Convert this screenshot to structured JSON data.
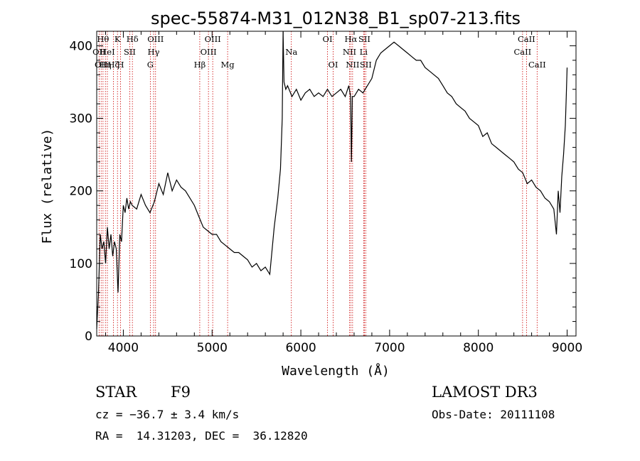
{
  "chart_data": {
    "type": "line",
    "title": "spec-55874-M31_012N38_B1_sp07-213.fits",
    "xlabel": "Wavelength (Å)",
    "ylabel": "Flux (relative)",
    "xlim": [
      3700,
      9100
    ],
    "ylim": [
      0,
      420
    ],
    "xticks": [
      4000,
      5000,
      6000,
      7000,
      8000,
      9000
    ],
    "yticks": [
      0,
      100,
      200,
      300,
      400
    ],
    "grid": false,
    "line_color": "#000000",
    "marker_color": "#cc0000",
    "series": [
      {
        "x": [
          3700,
          3720,
          3740,
          3760,
          3780,
          3800,
          3820,
          3840,
          3860,
          3880,
          3900,
          3920,
          3940,
          3960,
          3980,
          4000,
          4020,
          4040,
          4060,
          4080,
          4100,
          4150,
          4200,
          4250,
          4300,
          4350,
          4400,
          4450,
          4500,
          4550,
          4600,
          4650,
          4700,
          4750,
          4800,
          4850,
          4900,
          4950,
          5000,
          5050,
          5100,
          5150,
          5200,
          5250,
          5300,
          5350,
          5400,
          5450,
          5500,
          5550,
          5600,
          5650,
          5700,
          5740,
          5770,
          5790,
          5800,
          5810,
          5830,
          5850,
          5900,
          5950,
          6000,
          6050,
          6100,
          6150,
          6200,
          6250,
          6300,
          6350,
          6400,
          6450,
          6500,
          6540,
          6560,
          6570,
          6580,
          6600,
          6650,
          6700,
          6750,
          6800,
          6850,
          6900,
          6950,
          7000,
          7050,
          7100,
          7150,
          7200,
          7250,
          7300,
          7350,
          7400,
          7450,
          7500,
          7550,
          7600,
          7650,
          7700,
          7750,
          7800,
          7850,
          7900,
          7950,
          8000,
          8050,
          8100,
          8150,
          8200,
          8250,
          8300,
          8350,
          8400,
          8450,
          8500,
          8550,
          8600,
          8650,
          8700,
          8750,
          8800,
          8850,
          8880,
          8900,
          8920,
          8940,
          8960,
          8980,
          8990,
          9000
        ],
        "y": [
          10,
          60,
          140,
          120,
          130,
          100,
          150,
          120,
          140,
          110,
          130,
          120,
          60,
          140,
          130,
          180,
          170,
          190,
          175,
          185,
          180,
          175,
          195,
          180,
          170,
          185,
          210,
          195,
          225,
          200,
          215,
          205,
          200,
          190,
          180,
          165,
          150,
          145,
          140,
          140,
          130,
          125,
          120,
          115,
          115,
          110,
          105,
          95,
          100,
          90,
          95,
          85,
          150,
          190,
          230,
          300,
          420,
          350,
          340,
          345,
          330,
          340,
          325,
          335,
          340,
          330,
          335,
          330,
          340,
          330,
          335,
          340,
          330,
          345,
          330,
          240,
          330,
          330,
          340,
          335,
          345,
          355,
          380,
          390,
          395,
          400,
          405,
          400,
          395,
          390,
          385,
          380,
          380,
          370,
          365,
          360,
          355,
          345,
          335,
          330,
          320,
          315,
          310,
          300,
          295,
          290,
          275,
          280,
          265,
          260,
          255,
          250,
          245,
          240,
          230,
          225,
          210,
          215,
          205,
          200,
          190,
          185,
          175,
          140,
          200,
          170,
          220,
          250,
          290,
          330,
          370
        ]
      }
    ],
    "line_markers": [
      {
        "wl": 3727,
        "label": "OII",
        "row": 2
      },
      {
        "wl": 3750,
        "label": "OII",
        "row": 3
      },
      {
        "wl": 3771,
        "label": "Hθ",
        "row": 1
      },
      {
        "wl": 3798,
        "label": "Hη",
        "row": 3
      },
      {
        "wl": 3820,
        "label": "HeI",
        "row": 2
      },
      {
        "wl": 3889,
        "label": "Hζ",
        "row": 3
      },
      {
        "wl": 3934,
        "label": "K",
        "row": 1
      },
      {
        "wl": 3969,
        "label": "H",
        "row": 3
      },
      {
        "wl": 4072,
        "label": "SII",
        "row": 2
      },
      {
        "wl": 4102,
        "label": "Hδ",
        "row": 1
      },
      {
        "wl": 4304,
        "label": "G",
        "row": 3
      },
      {
        "wl": 4341,
        "label": "Hγ",
        "row": 2
      },
      {
        "wl": 4363,
        "label": "OIII",
        "row": 1
      },
      {
        "wl": 4861,
        "label": "Hβ",
        "row": 3
      },
      {
        "wl": 4959,
        "label": "OIII",
        "row": 2
      },
      {
        "wl": 5007,
        "label": "OIII",
        "row": 1
      },
      {
        "wl": 5175,
        "label": "Mg",
        "row": 3
      },
      {
        "wl": 5893,
        "label": "Na",
        "row": 2
      },
      {
        "wl": 6300,
        "label": "OI",
        "row": 1
      },
      {
        "wl": 6364,
        "label": "OI",
        "row": 3
      },
      {
        "wl": 6548,
        "label": "NII",
        "row": 2
      },
      {
        "wl": 6563,
        "label": "Hα",
        "row": 1
      },
      {
        "wl": 6583,
        "label": "NII",
        "row": 3
      },
      {
        "wl": 6707,
        "label": "Li",
        "row": 2
      },
      {
        "wl": 6716,
        "label": "SII",
        "row": 1
      },
      {
        "wl": 6731,
        "label": "SII",
        "row": 3
      },
      {
        "wl": 8498,
        "label": "CaII",
        "row": 2
      },
      {
        "wl": 8542,
        "label": "CaII",
        "row": 1
      },
      {
        "wl": 8662,
        "label": "CaII",
        "row": 3
      }
    ]
  },
  "info": {
    "class": "STAR",
    "subclass": "F9",
    "survey": "LAMOST DR3",
    "cz": "cz = −36.7 ± 3.4 km/s",
    "obs_date": "Obs-Date: 20111108",
    "radec": "RA =  14.31203, DEC =  36.12820"
  }
}
